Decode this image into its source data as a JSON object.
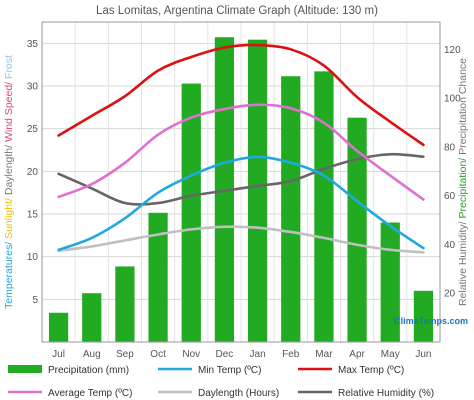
{
  "chart_data": {
    "type": "bar",
    "title": "Las Lomitas, Argentina Climate Graph (Altitude: 130 m)",
    "categories": [
      "Jul",
      "Aug",
      "Sep",
      "Oct",
      "Nov",
      "Dec",
      "Jan",
      "Feb",
      "Mar",
      "Apr",
      "May",
      "Jun"
    ],
    "y_left": {
      "label_parts": [
        {
          "text": "Temperatures/",
          "color": "#1fa9e0"
        },
        {
          "text": " Sunlight/",
          "color": "#f2c200"
        },
        {
          "text": " Daylength/",
          "color": "#777777"
        },
        {
          "text": " Wind Speed/",
          "color": "#e0437a"
        },
        {
          "text": " Frost",
          "color": "#8fc8e8"
        }
      ],
      "ylim": [
        0,
        37.5
      ],
      "ticks": [
        5,
        10,
        15,
        20,
        25,
        30,
        35
      ]
    },
    "y_right": {
      "label_parts": [
        {
          "text": "Relative Humidity/",
          "color": "#777777"
        },
        {
          "text": " Precipitation/",
          "color": "#2e9e2e"
        },
        {
          "text": " Precipitation Chance",
          "color": "#777777"
        }
      ],
      "ylim": [
        0,
        131.25
      ],
      "ticks": [
        20,
        40,
        60,
        80,
        100,
        120
      ]
    },
    "grid": true,
    "series": [
      {
        "name": "Precipitation (mm)",
        "type": "bar",
        "axis": "right",
        "color": "#22aa22",
        "values": [
          12,
          20,
          31,
          53,
          106,
          125,
          124,
          109,
          111,
          92,
          49,
          21
        ]
      },
      {
        "name": "Min Temp (ºC)",
        "type": "line",
        "axis": "left",
        "color": "#1fa9e0",
        "values": [
          10.8,
          12.2,
          14.5,
          17.5,
          19.5,
          21.0,
          21.7,
          21.0,
          19.5,
          16.5,
          13.6,
          11.0
        ]
      },
      {
        "name": "Max Temp (ºC)",
        "type": "line",
        "axis": "left",
        "color": "#dd1111",
        "values": [
          24.2,
          26.5,
          28.8,
          31.8,
          33.4,
          34.5,
          34.8,
          34.3,
          32.4,
          28.7,
          25.8,
          23.1
        ]
      },
      {
        "name": "Average Temp (ºC)",
        "type": "line",
        "axis": "left",
        "color": "#e070d0",
        "values": [
          17.0,
          18.5,
          21.0,
          24.3,
          26.3,
          27.3,
          27.8,
          27.4,
          25.7,
          22.4,
          19.5,
          16.7
        ]
      },
      {
        "name": "Daylength (Hours)",
        "type": "line",
        "axis": "left",
        "color": "#c0c0c0",
        "values": [
          10.7,
          11.2,
          11.9,
          12.6,
          13.2,
          13.5,
          13.4,
          12.9,
          12.2,
          11.4,
          10.8,
          10.5
        ]
      },
      {
        "name": "Relative Humidity (%)",
        "type": "line",
        "axis": "right",
        "color": "#666666",
        "values": [
          69,
          63,
          57,
          57,
          60,
          62,
          64,
          66,
          71,
          75,
          77,
          76
        ]
      }
    ],
    "legend_position": "bottom"
  },
  "brand": "ClimaTemps.com"
}
